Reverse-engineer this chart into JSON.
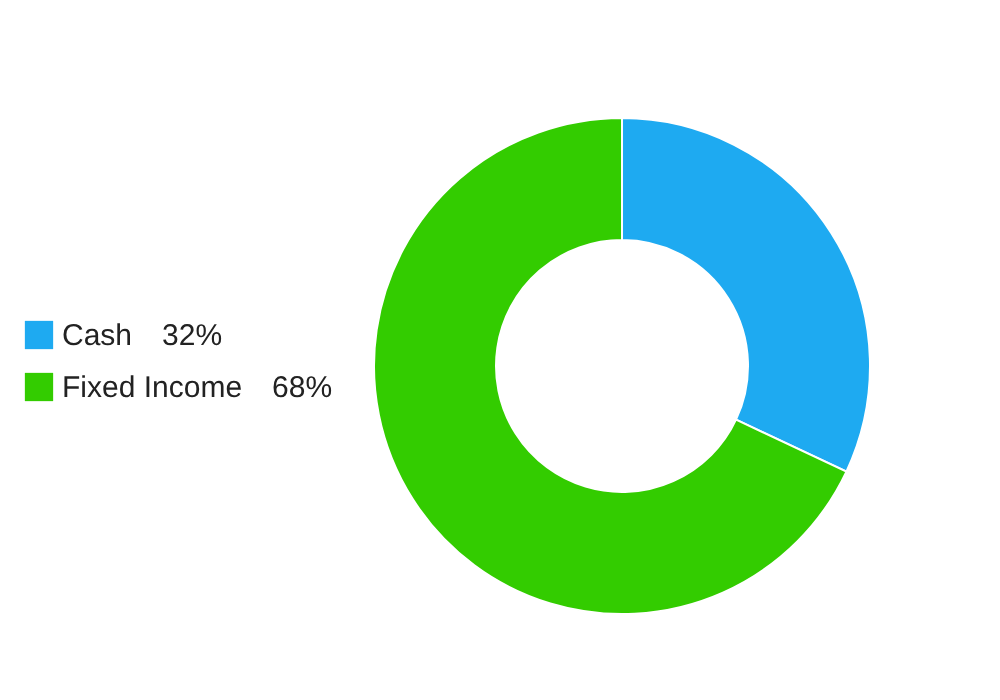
{
  "chart_data": {
    "type": "donut",
    "categories": [
      "Cash",
      "Fixed Income"
    ],
    "values": [
      32,
      68
    ],
    "value_labels": [
      "32%",
      "68%"
    ],
    "colors": [
      "#1eaaf1",
      "#33cc00"
    ],
    "legend": "left"
  }
}
